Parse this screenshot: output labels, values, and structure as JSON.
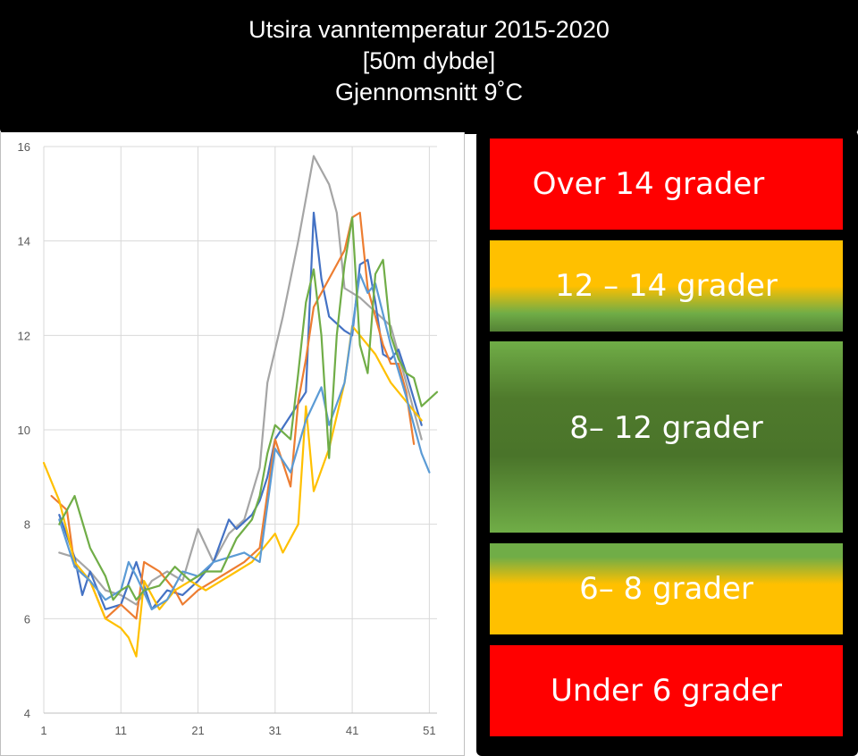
{
  "header": {
    "line1": "Utsira vanntemperatur 2015-2020",
    "line2": "[50m dybde]",
    "line3": "Gjennomsnitt 9˚C"
  },
  "legend": {
    "bands": [
      {
        "label": "Over 14 grader"
      },
      {
        "label": "12 – 14 grader"
      },
      {
        "label": "8– 12 grader"
      },
      {
        "label": "6– 8 grader"
      },
      {
        "label": "Under 6 grader"
      }
    ]
  },
  "chart_data": {
    "type": "line",
    "title": "",
    "xlabel": "",
    "ylabel": "",
    "xlim": [
      1,
      52
    ],
    "ylim": [
      4,
      16
    ],
    "x_ticks": [
      1,
      11,
      21,
      31,
      41,
      51
    ],
    "y_ticks": [
      4,
      6,
      8,
      10,
      12,
      14,
      16
    ],
    "grid": true,
    "series": [
      {
        "color": "#a5a5a5",
        "points": [
          [
            3,
            7.4
          ],
          [
            5,
            7.3
          ],
          [
            7,
            7.0
          ],
          [
            9,
            6.6
          ],
          [
            11,
            6.5
          ],
          [
            13,
            6.3
          ],
          [
            15,
            6.8
          ],
          [
            17,
            7.0
          ],
          [
            19,
            6.8
          ],
          [
            21,
            7.9
          ],
          [
            23,
            7.2
          ],
          [
            25,
            7.8
          ],
          [
            27,
            8.1
          ],
          [
            29,
            9.2
          ],
          [
            30,
            11.0
          ],
          [
            32,
            12.4
          ],
          [
            34,
            14.0
          ],
          [
            36,
            15.8
          ],
          [
            38,
            15.2
          ],
          [
            39,
            14.6
          ],
          [
            40,
            13.0
          ],
          [
            42,
            12.8
          ],
          [
            44,
            12.5
          ],
          [
            46,
            12.2
          ],
          [
            48,
            11.0
          ],
          [
            50,
            9.8
          ]
        ]
      },
      {
        "color": "#4472c4",
        "points": [
          [
            3,
            8.2
          ],
          [
            5,
            7.3
          ],
          [
            6,
            6.5
          ],
          [
            7,
            7.0
          ],
          [
            9,
            6.2
          ],
          [
            11,
            6.3
          ],
          [
            13,
            7.2
          ],
          [
            15,
            6.2
          ],
          [
            17,
            6.6
          ],
          [
            19,
            6.5
          ],
          [
            21,
            6.8
          ],
          [
            23,
            7.2
          ],
          [
            25,
            8.1
          ],
          [
            26,
            7.9
          ],
          [
            28,
            8.2
          ],
          [
            29,
            8.5
          ],
          [
            30,
            9.0
          ],
          [
            31,
            9.8
          ],
          [
            33,
            10.3
          ],
          [
            35,
            10.8
          ],
          [
            36,
            14.6
          ],
          [
            37,
            13.2
          ],
          [
            38,
            12.4
          ],
          [
            40,
            12.1
          ],
          [
            41,
            12.0
          ],
          [
            42,
            13.5
          ],
          [
            43,
            13.6
          ],
          [
            44,
            12.7
          ],
          [
            45,
            11.6
          ],
          [
            46,
            11.5
          ],
          [
            47,
            11.7
          ],
          [
            48,
            11.2
          ],
          [
            50,
            10.1
          ]
        ]
      },
      {
        "color": "#ed7d31",
        "points": [
          [
            2,
            8.6
          ],
          [
            4,
            8.3
          ],
          [
            5,
            7.1
          ],
          [
            7,
            6.8
          ],
          [
            9,
            6.0
          ],
          [
            11,
            6.3
          ],
          [
            13,
            6.0
          ],
          [
            14,
            7.2
          ],
          [
            16,
            7.0
          ],
          [
            18,
            6.6
          ],
          [
            19,
            6.3
          ],
          [
            21,
            6.6
          ],
          [
            23,
            6.8
          ],
          [
            25,
            7.0
          ],
          [
            27,
            7.2
          ],
          [
            29,
            7.5
          ],
          [
            31,
            9.8
          ],
          [
            33,
            8.8
          ],
          [
            34,
            10.6
          ],
          [
            35,
            11.5
          ],
          [
            36,
            12.6
          ],
          [
            38,
            13.2
          ],
          [
            40,
            13.8
          ],
          [
            41,
            14.5
          ],
          [
            42,
            14.6
          ],
          [
            43,
            13.0
          ],
          [
            45,
            11.8
          ],
          [
            46,
            11.4
          ],
          [
            47,
            11.4
          ],
          [
            48,
            10.8
          ],
          [
            49,
            9.7
          ]
        ]
      },
      {
        "color": "#ffc000",
        "points": [
          [
            1,
            9.3
          ],
          [
            3,
            8.5
          ],
          [
            5,
            7.2
          ],
          [
            7,
            6.8
          ],
          [
            9,
            6.0
          ],
          [
            10,
            5.9
          ],
          [
            11,
            5.8
          ],
          [
            12,
            5.6
          ],
          [
            13,
            5.2
          ],
          [
            14,
            6.8
          ],
          [
            16,
            6.2
          ],
          [
            18,
            6.6
          ],
          [
            20,
            6.8
          ],
          [
            22,
            6.6
          ],
          [
            24,
            6.8
          ],
          [
            26,
            7.0
          ],
          [
            28,
            7.2
          ],
          [
            30,
            7.6
          ],
          [
            31,
            7.8
          ],
          [
            32,
            7.4
          ],
          [
            34,
            8.0
          ],
          [
            35,
            10.5
          ],
          [
            36,
            8.7
          ],
          [
            38,
            9.6
          ],
          [
            40,
            11.0
          ],
          [
            41,
            12.2
          ],
          [
            42,
            12.0
          ],
          [
            44,
            11.6
          ],
          [
            46,
            11.0
          ],
          [
            48,
            10.6
          ],
          [
            50,
            10.2
          ]
        ]
      },
      {
        "color": "#5b9bd5",
        "points": [
          [
            3,
            8.1
          ],
          [
            5,
            7.1
          ],
          [
            7,
            6.8
          ],
          [
            9,
            6.4
          ],
          [
            11,
            6.6
          ],
          [
            12,
            7.2
          ],
          [
            13,
            6.9
          ],
          [
            15,
            6.2
          ],
          [
            17,
            6.4
          ],
          [
            19,
            7.0
          ],
          [
            21,
            6.9
          ],
          [
            23,
            7.2
          ],
          [
            25,
            7.3
          ],
          [
            27,
            7.4
          ],
          [
            29,
            7.2
          ],
          [
            31,
            9.6
          ],
          [
            33,
            9.1
          ],
          [
            35,
            10.2
          ],
          [
            37,
            10.9
          ],
          [
            38,
            10.1
          ],
          [
            40,
            11.0
          ],
          [
            42,
            13.3
          ],
          [
            43,
            12.9
          ],
          [
            44,
            13.1
          ],
          [
            46,
            11.8
          ],
          [
            48,
            10.7
          ],
          [
            50,
            9.5
          ],
          [
            51,
            9.1
          ]
        ]
      },
      {
        "color": "#70ad47",
        "points": [
          [
            3,
            8.0
          ],
          [
            5,
            8.6
          ],
          [
            7,
            7.5
          ],
          [
            9,
            6.9
          ],
          [
            10,
            6.4
          ],
          [
            11,
            6.6
          ],
          [
            12,
            6.7
          ],
          [
            13,
            6.4
          ],
          [
            14,
            6.6
          ],
          [
            16,
            6.7
          ],
          [
            18,
            7.1
          ],
          [
            20,
            6.8
          ],
          [
            22,
            7.0
          ],
          [
            24,
            7.0
          ],
          [
            26,
            7.7
          ],
          [
            28,
            8.1
          ],
          [
            29,
            8.6
          ],
          [
            30,
            9.5
          ],
          [
            31,
            10.1
          ],
          [
            33,
            9.8
          ],
          [
            34,
            11.2
          ],
          [
            35,
            12.7
          ],
          [
            36,
            13.4
          ],
          [
            37,
            12.0
          ],
          [
            38,
            9.4
          ],
          [
            39,
            12.0
          ],
          [
            40,
            13.5
          ],
          [
            41,
            14.5
          ],
          [
            42,
            11.8
          ],
          [
            43,
            11.2
          ],
          [
            44,
            13.3
          ],
          [
            45,
            13.6
          ],
          [
            46,
            12.0
          ],
          [
            47,
            11.5
          ],
          [
            48,
            11.2
          ],
          [
            49,
            11.1
          ],
          [
            50,
            10.5
          ],
          [
            52,
            10.8
          ]
        ]
      }
    ]
  }
}
